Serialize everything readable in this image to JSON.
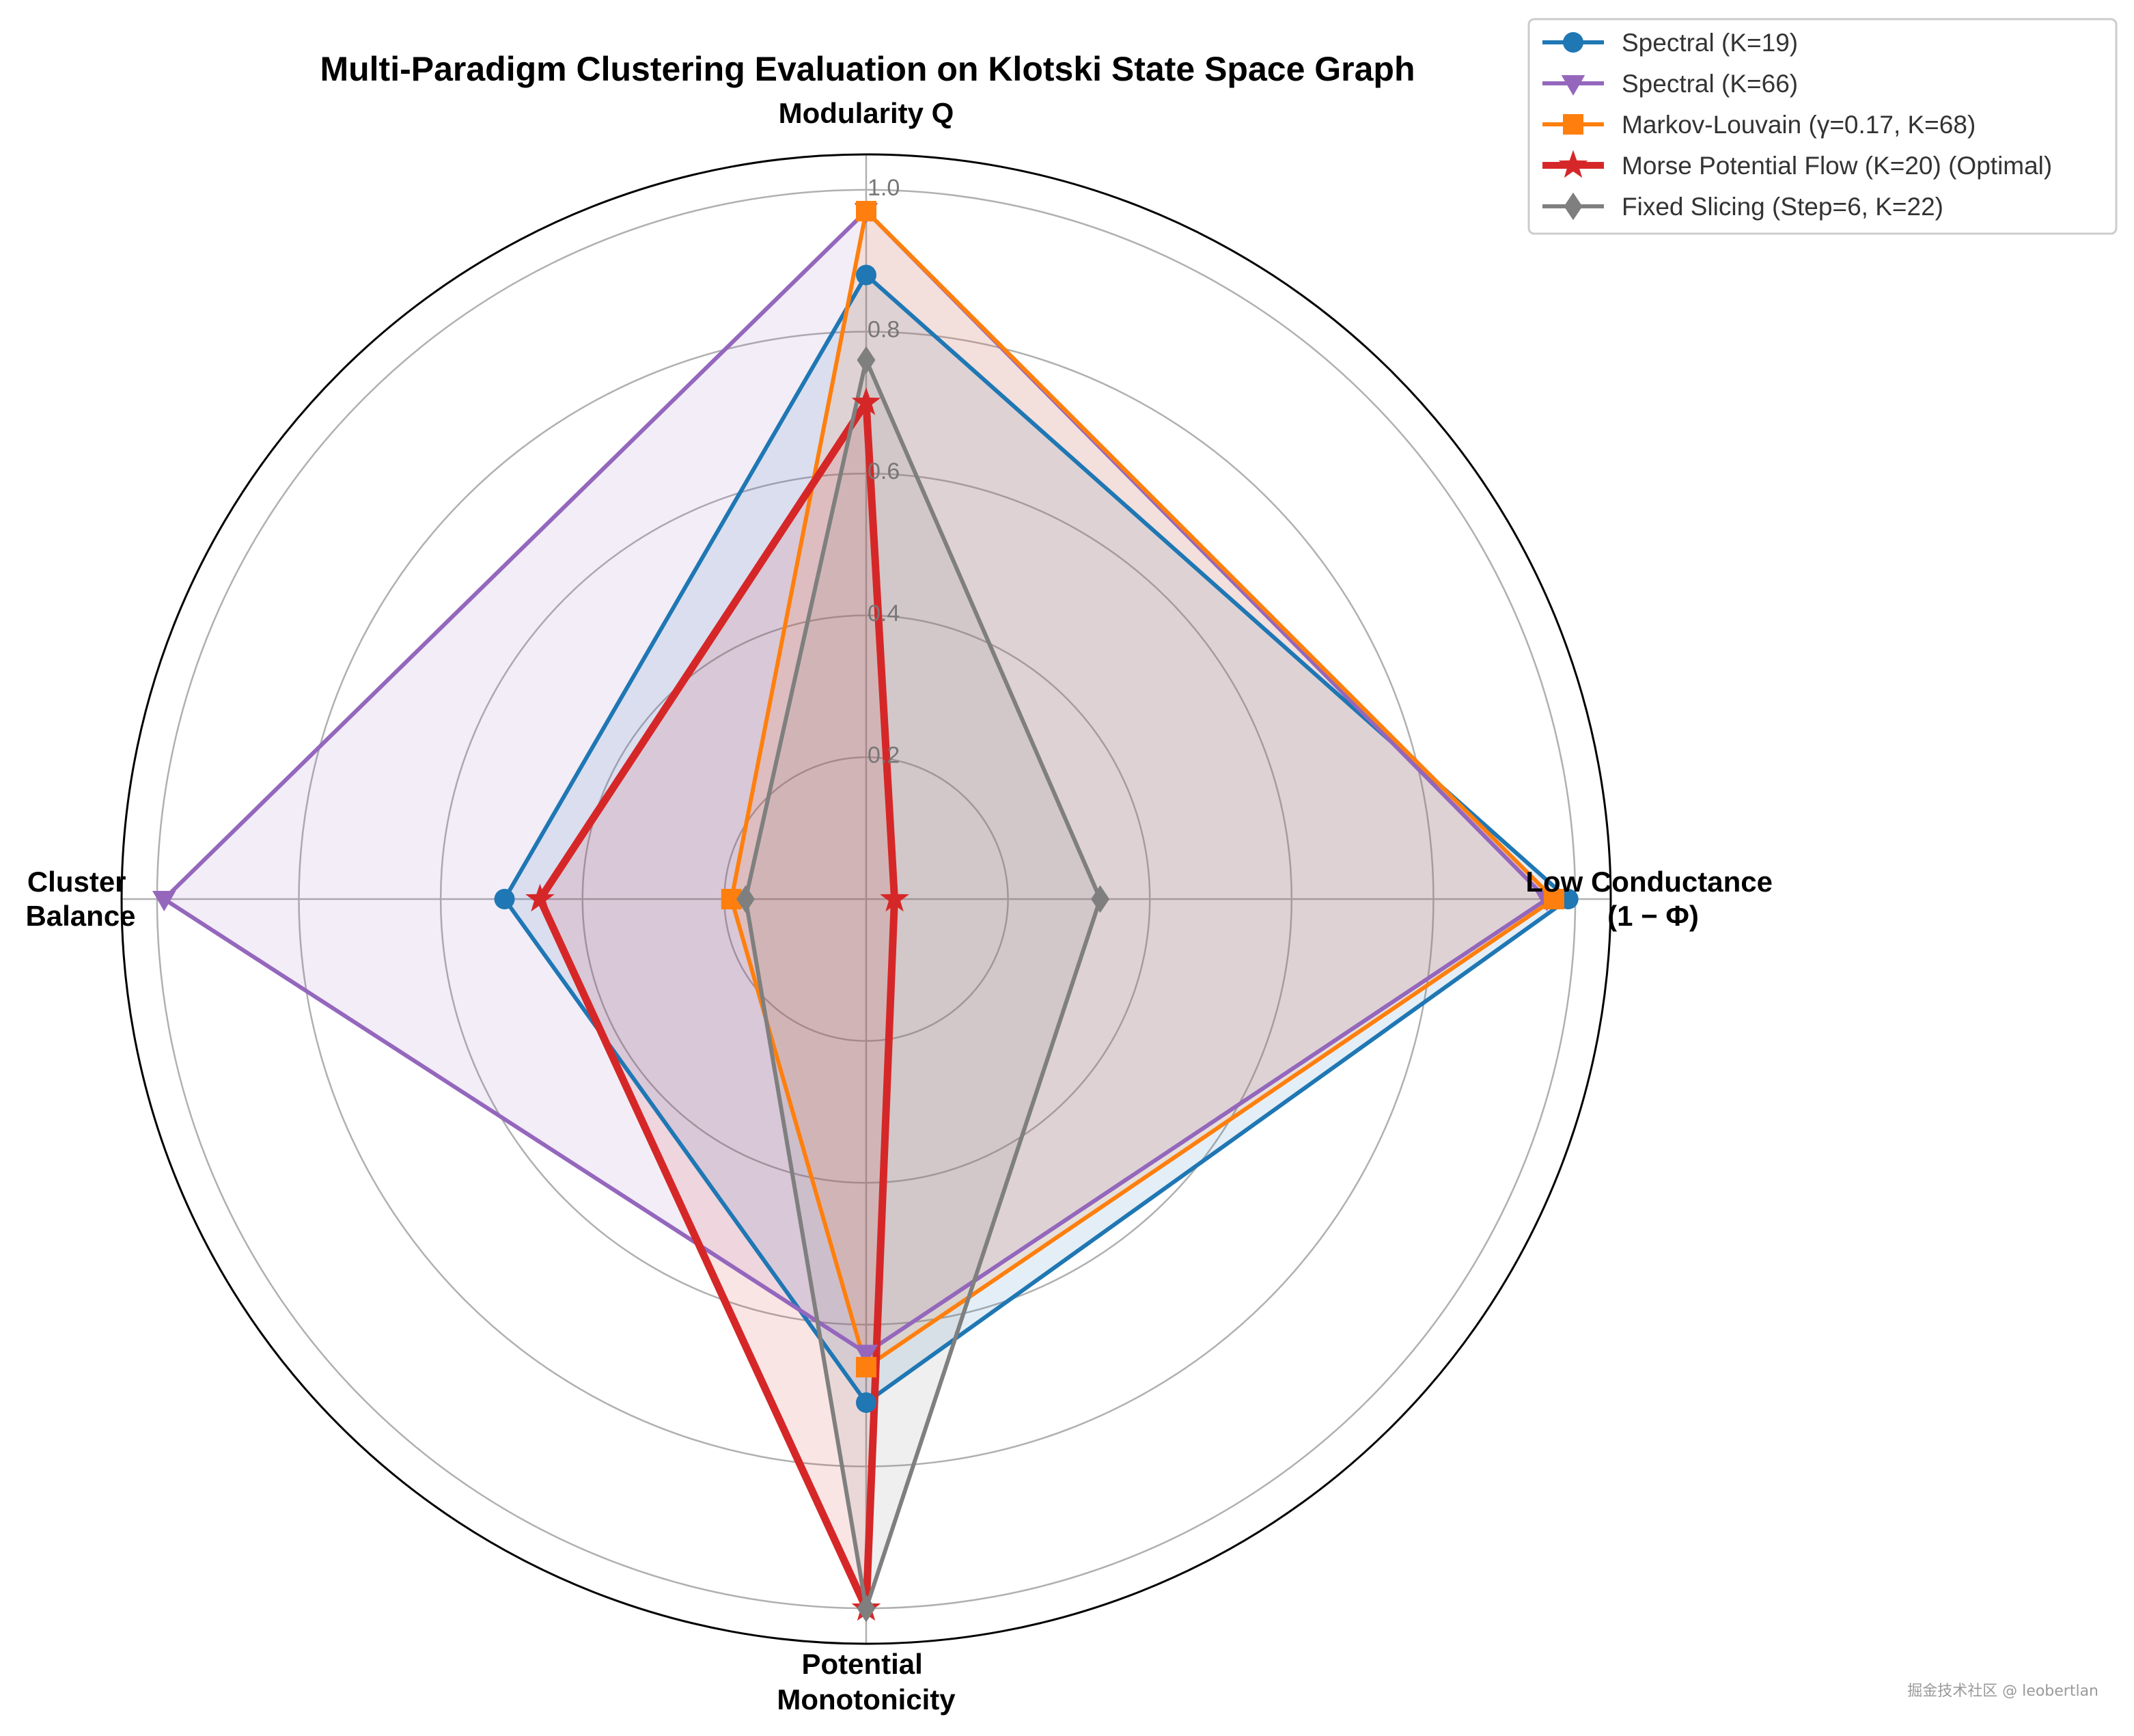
{
  "chart_data": {
    "type": "radar",
    "title": "Multi-Paradigm Clustering Evaluation on Klotski State Space Graph",
    "axes": [
      {
        "label": [
          "Modularity Q"
        ]
      },
      {
        "label": [
          "Low Conductance",
          "(1 − Φ)"
        ]
      },
      {
        "label": [
          "Potential",
          "Monotonicity"
        ]
      },
      {
        "label": [
          "Cluster",
          "Balance"
        ]
      }
    ],
    "rlim": [
      0,
      1.05
    ],
    "rticks": [
      "0.2",
      "0.4",
      "0.6",
      "0.8",
      "1.0"
    ],
    "rtick_values": [
      0.2,
      0.4,
      0.6,
      0.8,
      1.0
    ],
    "grid": true,
    "legend_position": "upper-right-outside",
    "series": [
      {
        "name": "Spectral (K=19)",
        "color": "#1f77b4",
        "marker": "circle",
        "values": [
          0.88,
          0.99,
          0.71,
          0.51
        ]
      },
      {
        "name": "Spectral (K=66)",
        "color": "#9467bd",
        "marker": "triangle-down",
        "values": [
          0.97,
          0.96,
          0.64,
          0.99
        ]
      },
      {
        "name": "Markov-Louvain (γ=0.17, K=68)",
        "color": "#ff7f0e",
        "marker": "square",
        "values": [
          0.97,
          0.97,
          0.66,
          0.19
        ]
      },
      {
        "name": "Morse Potential Flow (K=20) (Optimal)",
        "color": "#d62728",
        "marker": "star",
        "values": [
          0.7,
          0.04,
          1.0,
          0.46
        ]
      },
      {
        "name": "Fixed Slicing (Step=6, K=22)",
        "color": "#7f7f7f",
        "marker": "diamond",
        "values": [
          0.76,
          0.33,
          1.0,
          0.17
        ]
      }
    ]
  },
  "watermark": "掘金技术社区 @ leobertlan"
}
